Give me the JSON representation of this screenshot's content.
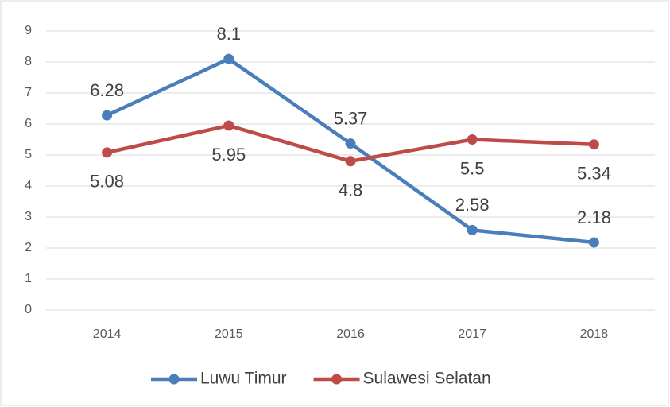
{
  "chart_data": {
    "type": "line",
    "categories": [
      "2014",
      "2015",
      "2016",
      "2017",
      "2018"
    ],
    "series": [
      {
        "name": "Luwu Timur",
        "color": "#4a7ebb",
        "values": [
          6.28,
          8.1,
          5.37,
          2.58,
          2.18
        ]
      },
      {
        "name": "Sulawesi Selatan",
        "color": "#be4b48",
        "values": [
          5.08,
          5.95,
          4.8,
          5.5,
          5.34
        ]
      }
    ],
    "ylim": [
      0,
      9
    ],
    "yticks": [
      0,
      1,
      2,
      3,
      4,
      5,
      6,
      7,
      8,
      9
    ],
    "grid": true,
    "legend": "bottom"
  }
}
